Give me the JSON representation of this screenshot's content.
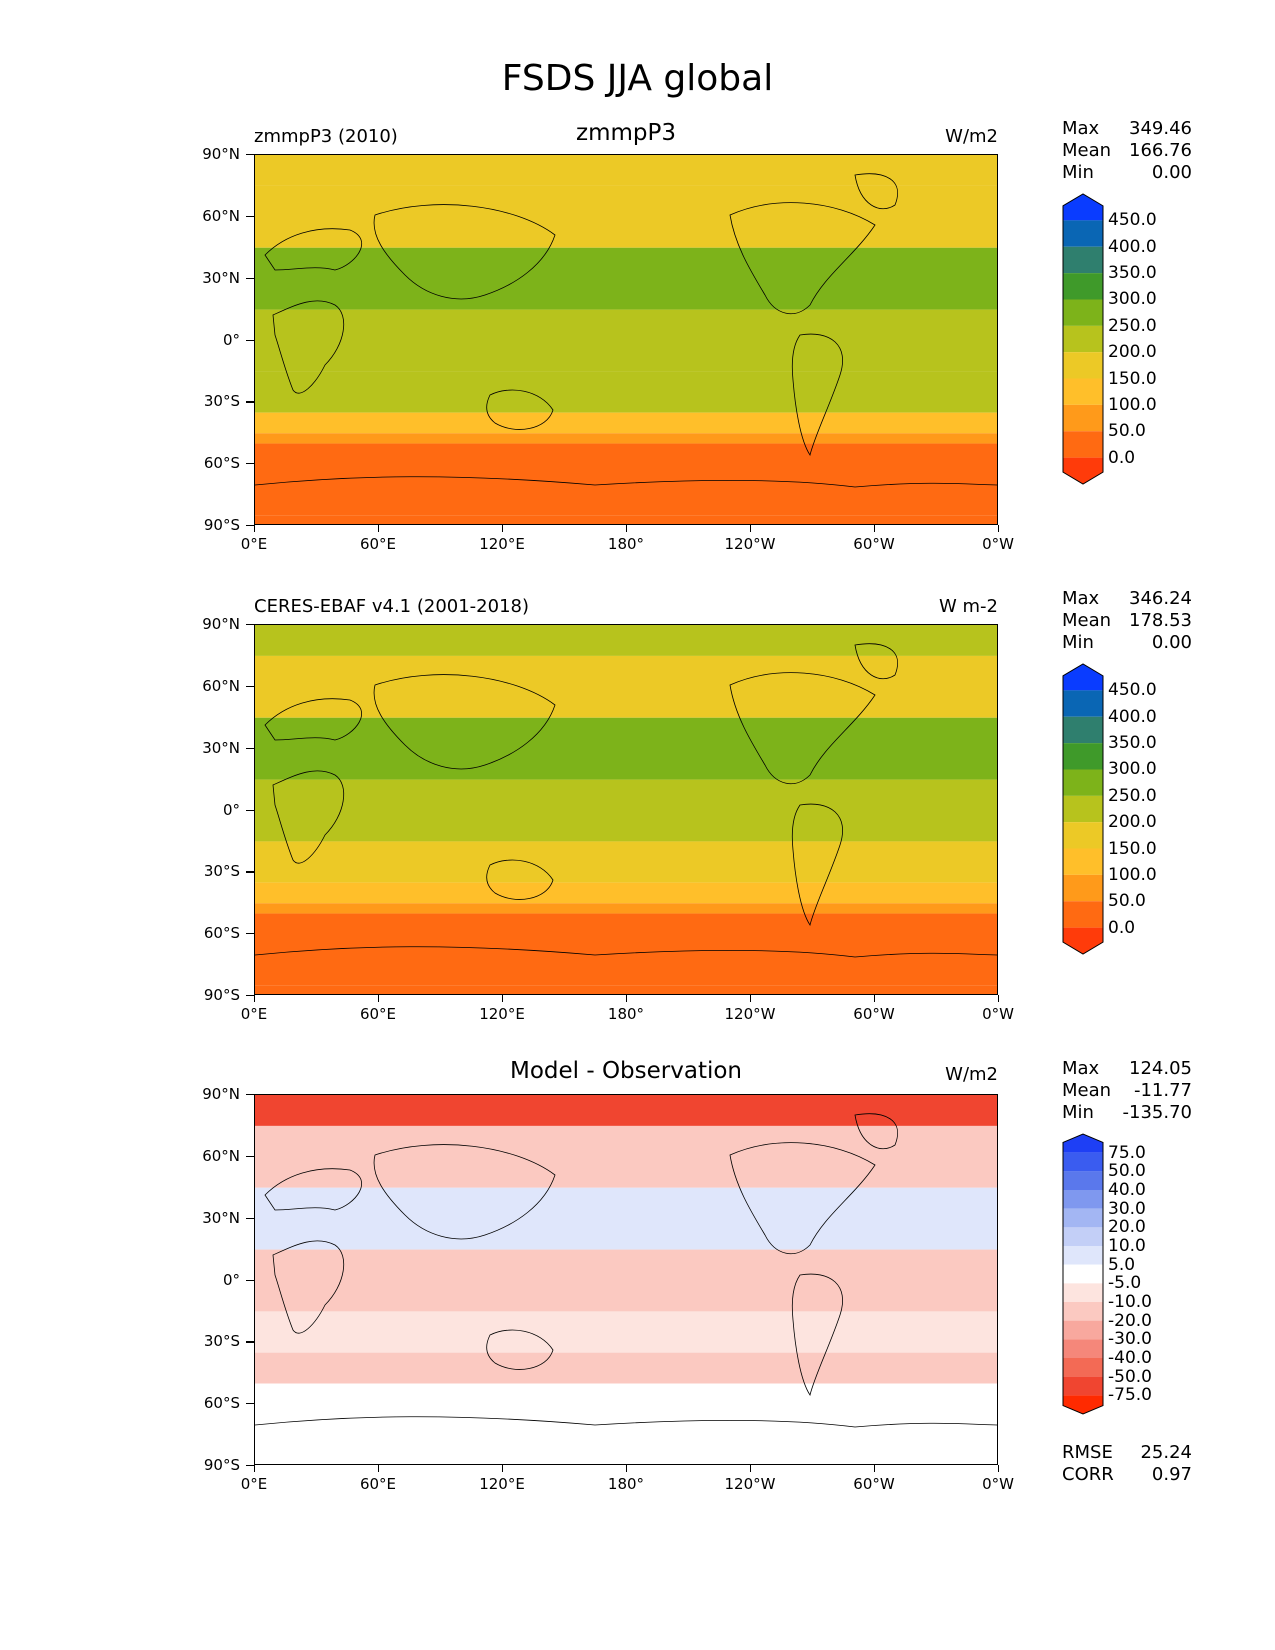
{
  "title": "FSDS JJA global",
  "axes": {
    "y_ticks": [
      "90°N",
      "60°N",
      "30°N",
      "0°",
      "30°S",
      "60°S",
      "90°S"
    ],
    "x_ticks": [
      "0°E",
      "60°E",
      "120°E",
      "180°",
      "120°W",
      "60°W",
      "0°W"
    ]
  },
  "panels": [
    {
      "left_title": "zmmpP3 (2010)",
      "center_title": "zmmpP3",
      "right_title": "W/m2",
      "stats": [
        [
          "Max",
          "349.46"
        ],
        [
          "Mean",
          "166.76"
        ],
        [
          "Min",
          "0.00"
        ]
      ],
      "colorbar_labels": [
        "450.0",
        "400.0",
        "350.0",
        "300.0",
        "250.0",
        "200.0",
        "150.0",
        "100.0",
        "50.0",
        "0.0"
      ],
      "colorbar_colors": [
        "#ff3b0a",
        "#ff6a12",
        "#ff9a1a",
        "#ffbf2a",
        "#ecc926",
        "#b7c31d",
        "#7db31a",
        "#3f9a2a",
        "#2f7f6e",
        "#0a66b4",
        "#0a3cff"
      ]
    },
    {
      "left_title": "CERES-EBAF v4.1 (2001-2018)",
      "center_title": "",
      "right_title": "W m-2",
      "stats": [
        [
          "Max",
          "346.24"
        ],
        [
          "Mean",
          "178.53"
        ],
        [
          "Min",
          "0.00"
        ]
      ],
      "colorbar_labels": [
        "450.0",
        "400.0",
        "350.0",
        "300.0",
        "250.0",
        "200.0",
        "150.0",
        "100.0",
        "50.0",
        "0.0"
      ],
      "colorbar_colors": [
        "#ff3b0a",
        "#ff6a12",
        "#ff9a1a",
        "#ffbf2a",
        "#ecc926",
        "#b7c31d",
        "#7db31a",
        "#3f9a2a",
        "#2f7f6e",
        "#0a66b4",
        "#0a3cff"
      ]
    },
    {
      "left_title": "",
      "center_title": "Model - Observation",
      "right_title": "W/m2",
      "stats": [
        [
          "Max",
          "124.05"
        ],
        [
          "Mean",
          "-11.77"
        ],
        [
          "Min",
          "-135.70"
        ]
      ],
      "colorbar_labels": [
        "75.0",
        "50.0",
        "40.0",
        "30.0",
        "20.0",
        "10.0",
        "5.0",
        "-5.0",
        "-10.0",
        "-20.0",
        "-30.0",
        "-40.0",
        "-50.0",
        "-75.0"
      ],
      "colorbar_colors": [
        "#ff2a00",
        "#f04530",
        "#f36a55",
        "#f5877a",
        "#f8a89e",
        "#fbc9c1",
        "#fde4df",
        "#ffffff",
        "#dfe6fb",
        "#c3cff7",
        "#a3b6f3",
        "#7f98ef",
        "#5a78ec",
        "#3a5cf0",
        "#1e3ff5"
      ],
      "rmse": [
        "RMSE",
        "25.24"
      ],
      "corr": [
        "CORR",
        "0.97"
      ]
    }
  ],
  "chart_data": [
    {
      "type": "heatmap",
      "title": "zmmpP3",
      "units": "W/m2",
      "xlabel": "",
      "ylabel": "",
      "x_range": [
        "0°E",
        "0°W"
      ],
      "y_range": [
        -90,
        90
      ],
      "levels": [
        0,
        50,
        100,
        150,
        200,
        250,
        300,
        350,
        400,
        450
      ],
      "zonal_bands": [
        {
          "lat_range": [
            75,
            90
          ],
          "approx_value": 175
        },
        {
          "lat_range": [
            45,
            75
          ],
          "approx_value": 160
        },
        {
          "lat_range": [
            15,
            45
          ],
          "approx_value": 270
        },
        {
          "lat_range": [
            -15,
            15
          ],
          "approx_value": 230
        },
        {
          "lat_range": [
            -35,
            -15
          ],
          "approx_value": 200
        },
        {
          "lat_range": [
            -45,
            -35
          ],
          "approx_value": 125
        },
        {
          "lat_range": [
            -50,
            -45
          ],
          "approx_value": 75
        },
        {
          "lat_range": [
            -85,
            -50
          ],
          "approx_value": 25
        },
        {
          "lat_range": [
            -90,
            -85
          ],
          "approx_value": 0
        }
      ],
      "stats": {
        "max": 349.46,
        "mean": 166.76,
        "min": 0.0
      }
    },
    {
      "type": "heatmap",
      "title": "CERES-EBAF v4.1 (2001-2018)",
      "units": "W m-2",
      "xlabel": "",
      "ylabel": "",
      "x_range": [
        "0°E",
        "0°W"
      ],
      "y_range": [
        -90,
        90
      ],
      "levels": [
        0,
        50,
        100,
        150,
        200,
        250,
        300,
        350,
        400,
        450
      ],
      "zonal_bands": [
        {
          "lat_range": [
            75,
            90
          ],
          "approx_value": 225
        },
        {
          "lat_range": [
            45,
            75
          ],
          "approx_value": 180
        },
        {
          "lat_range": [
            15,
            45
          ],
          "approx_value": 275
        },
        {
          "lat_range": [
            -15,
            15
          ],
          "approx_value": 230
        },
        {
          "lat_range": [
            -35,
            -15
          ],
          "approx_value": 180
        },
        {
          "lat_range": [
            -45,
            -35
          ],
          "approx_value": 125
        },
        {
          "lat_range": [
            -50,
            -45
          ],
          "approx_value": 75
        },
        {
          "lat_range": [
            -85,
            -50
          ],
          "approx_value": 25
        },
        {
          "lat_range": [
            -90,
            -85
          ],
          "approx_value": 0
        }
      ],
      "stats": {
        "max": 346.24,
        "mean": 178.53,
        "min": 0.0
      }
    },
    {
      "type": "heatmap",
      "title": "Model - Observation",
      "units": "W/m2",
      "xlabel": "",
      "ylabel": "",
      "x_range": [
        "0°E",
        "0°W"
      ],
      "y_range": [
        -90,
        90
      ],
      "levels": [
        -75,
        -50,
        -40,
        -30,
        -20,
        -10,
        -5,
        5,
        10,
        20,
        30,
        40,
        50,
        75
      ],
      "zonal_bands": [
        {
          "lat_range": [
            75,
            90
          ],
          "approx_value": -60
        },
        {
          "lat_range": [
            45,
            75
          ],
          "approx_value": -20
        },
        {
          "lat_range": [
            15,
            45
          ],
          "approx_value": 5
        },
        {
          "lat_range": [
            -15,
            15
          ],
          "approx_value": -15
        },
        {
          "lat_range": [
            -35,
            -15
          ],
          "approx_value": -10
        },
        {
          "lat_range": [
            -50,
            -35
          ],
          "approx_value": -15
        },
        {
          "lat_range": [
            -90,
            -50
          ],
          "approx_value": 0
        }
      ],
      "stats": {
        "max": 124.05,
        "mean": -11.77,
        "min": -135.7,
        "rmse": 25.24,
        "corr": 0.97
      }
    }
  ]
}
